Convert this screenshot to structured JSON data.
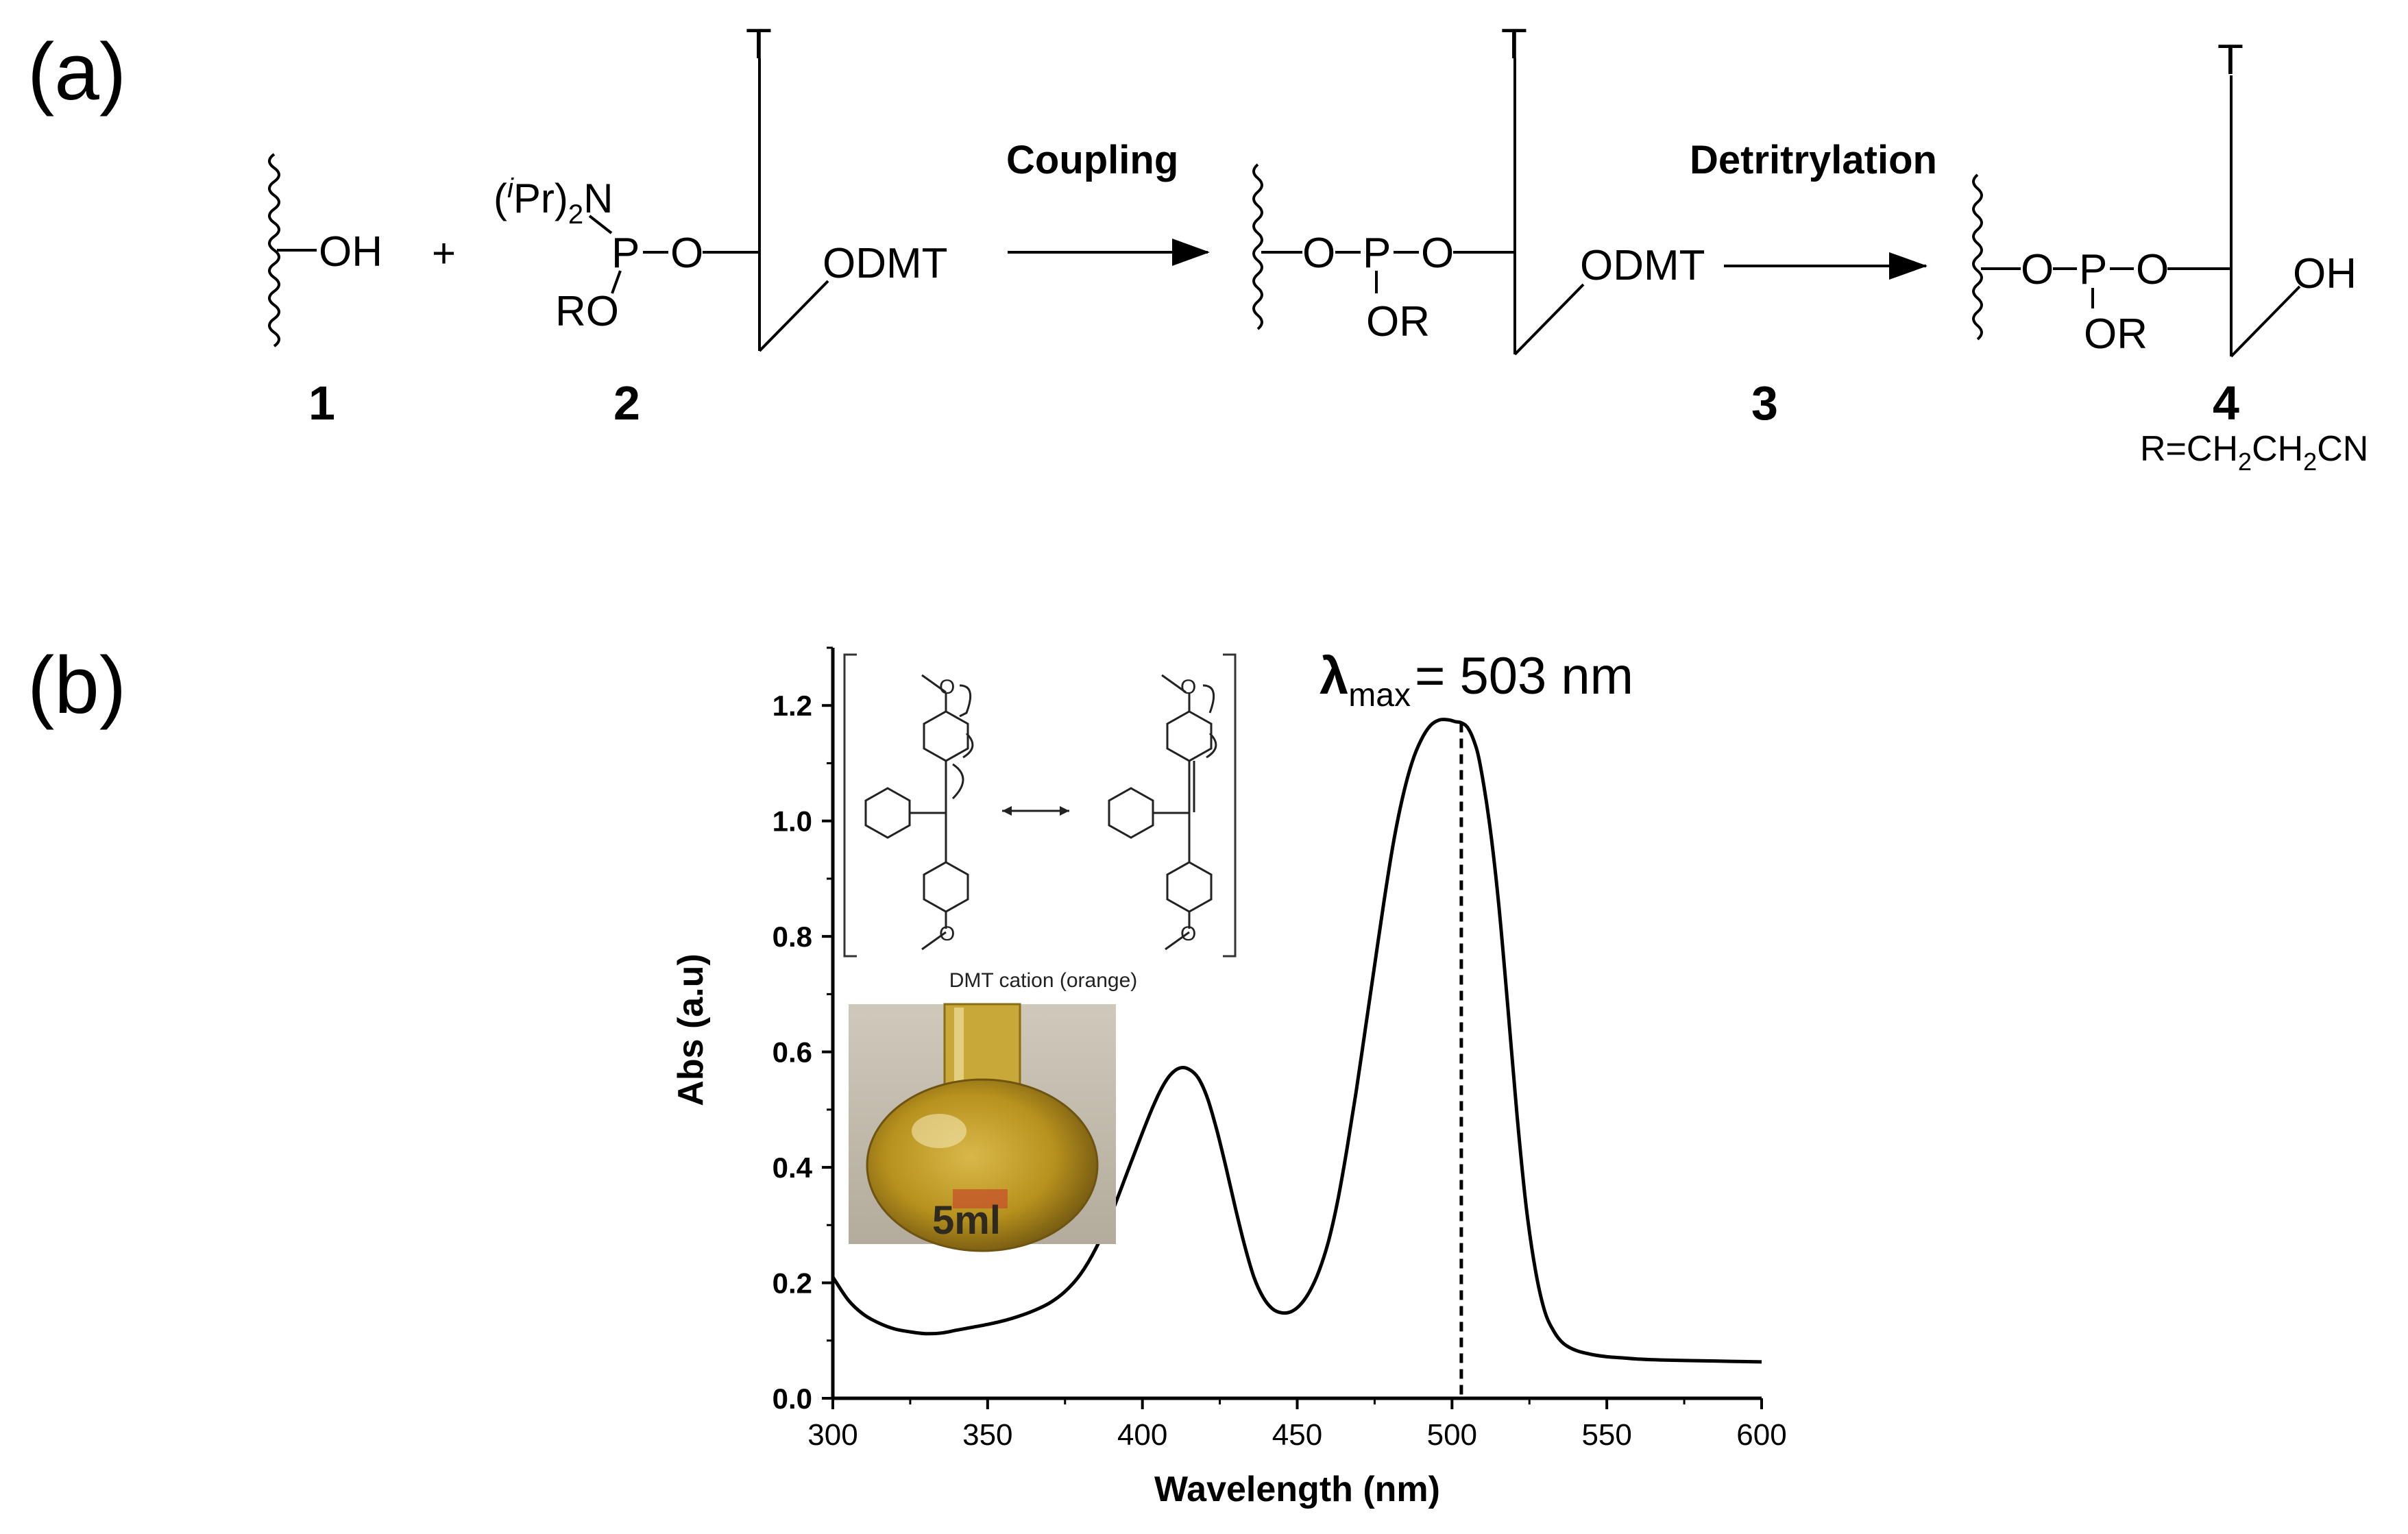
{
  "panel_a": {
    "label": "(a)",
    "reaction": {
      "plus": "+",
      "oh": "OH",
      "hydroxyl": "OH",
      "amidite": "(iPr)2N",
      "amidite_super": "i",
      "amidite_pre": "(",
      "amidite_mid": "Pr)",
      "amidite_sub": "2",
      "amidite_post": "N",
      "p": "P",
      "o": "O",
      "ro": "RO",
      "or": "OR",
      "odmt": "ODMT",
      "base": "T",
      "r_def_pre": "R=CH",
      "r_def_sub1": "2",
      "r_def_mid": "CH",
      "r_def_sub2": "2",
      "r_def_post": "CN"
    },
    "steps": [
      "Coupling",
      "Detritrylation"
    ],
    "compounds": [
      "1",
      "2",
      "3",
      "4"
    ]
  },
  "panel_b": {
    "label": "(b)",
    "annotation_symbol": "λ",
    "annotation_sub": "max",
    "annotation_value": "= 503 nm",
    "inset_caption": "DMT cation (orange)",
    "photo_text": "5ml"
  },
  "colors": {
    "line": "#000000",
    "liquid": "#b8921e",
    "background": "#ffffff"
  },
  "chart_data": {
    "type": "line",
    "title": "",
    "xlabel": "Wavelength (nm)",
    "ylabel": "Abs (a.u)",
    "xlim": [
      300,
      600
    ],
    "ylim": [
      0,
      1.3
    ],
    "xticks": [
      300,
      350,
      400,
      450,
      500,
      550,
      600
    ],
    "yticks": [
      "0.0",
      "0.2",
      "0.4",
      "0.6",
      "0.8",
      "1.0",
      "1.2"
    ],
    "ytick_values": [
      0,
      0.2,
      0.4,
      0.6,
      0.8,
      1.0,
      1.2
    ],
    "series": [
      {
        "name": "DMT cation absorbance",
        "x": [
          300,
          305,
          310,
          315,
          320,
          325,
          330,
          335,
          340,
          345,
          350,
          355,
          360,
          365,
          370,
          375,
          380,
          385,
          390,
          395,
          400,
          403,
          406,
          409,
          412,
          415,
          418,
          421,
          424,
          427,
          430,
          433,
          436,
          439,
          442,
          445,
          448,
          451,
          454,
          457,
          460,
          463,
          466,
          469,
          472,
          475,
          478,
          481,
          484,
          487,
          490,
          493,
          496,
          499,
          501,
          503,
          505,
          507,
          509,
          512,
          515,
          518,
          521,
          524,
          527,
          530,
          533,
          536,
          540,
          545,
          550,
          555,
          560,
          570,
          580,
          590,
          600
        ],
        "y": [
          0.21,
          0.17,
          0.145,
          0.13,
          0.12,
          0.115,
          0.112,
          0.113,
          0.118,
          0.123,
          0.128,
          0.134,
          0.142,
          0.152,
          0.165,
          0.185,
          0.215,
          0.26,
          0.32,
          0.39,
          0.46,
          0.5,
          0.535,
          0.56,
          0.572,
          0.57,
          0.555,
          0.52,
          0.465,
          0.4,
          0.33,
          0.265,
          0.21,
          0.175,
          0.155,
          0.148,
          0.15,
          0.162,
          0.185,
          0.22,
          0.27,
          0.34,
          0.43,
          0.53,
          0.64,
          0.75,
          0.86,
          0.96,
          1.04,
          1.1,
          1.14,
          1.165,
          1.175,
          1.175,
          1.172,
          1.17,
          1.162,
          1.14,
          1.1,
          1.0,
          0.86,
          0.68,
          0.49,
          0.33,
          0.22,
          0.15,
          0.115,
          0.095,
          0.083,
          0.076,
          0.072,
          0.07,
          0.068,
          0.066,
          0.065,
          0.064,
          0.063
        ]
      }
    ],
    "reference_line": {
      "x": 503,
      "style": "dashed"
    },
    "grid": false,
    "legend": "none"
  }
}
